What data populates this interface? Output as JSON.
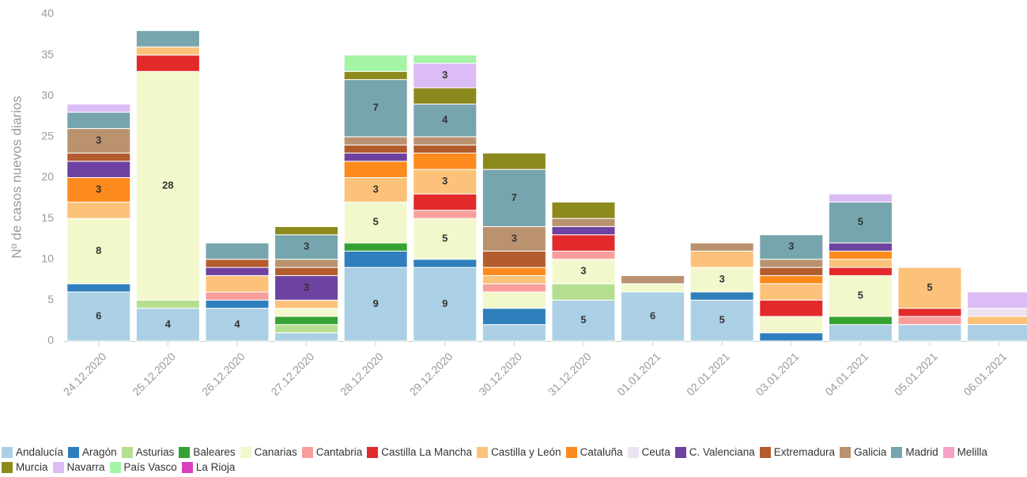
{
  "chart_data": {
    "type": "stacked-bar",
    "y_label": "Nº de casos nuevos diarios",
    "categories": [
      "24.12.2020",
      "25.12.2020",
      "26.12.2020",
      "27.12.2020",
      "28.12.2020",
      "29.12.2020",
      "30.12.2020",
      "31.12.2020",
      "01.01.2021",
      "02.01.2021",
      "03.01.2021",
      "04.01.2021",
      "05.01.2021",
      "06.01.2021"
    ],
    "ylim": [
      0,
      40
    ],
    "yticks": [
      0,
      5,
      10,
      15,
      20,
      25,
      30,
      35,
      40
    ],
    "series": [
      {
        "name": "Andalucía",
        "color": "#abd0e6",
        "values": [
          6,
          4,
          4,
          1,
          9,
          9,
          2,
          5,
          6,
          5,
          0,
          2,
          2,
          2
        ]
      },
      {
        "name": "Aragón",
        "color": "#2f7fbc",
        "values": [
          1,
          0,
          1,
          0,
          2,
          1,
          2,
          0,
          0,
          1,
          1,
          0,
          0,
          0
        ]
      },
      {
        "name": "Asturias",
        "color": "#b5df90",
        "values": [
          0,
          1,
          0,
          1,
          0,
          0,
          0,
          2,
          0,
          0,
          0,
          0,
          0,
          0
        ]
      },
      {
        "name": "Baleares",
        "color": "#36a233",
        "values": [
          0,
          0,
          0,
          1,
          1,
          0,
          0,
          0,
          0,
          0,
          0,
          1,
          0,
          0
        ]
      },
      {
        "name": "Canarias",
        "color": "#f3f8cc",
        "values": [
          8,
          28,
          0,
          1,
          5,
          5,
          2,
          3,
          1,
          3,
          2,
          5,
          0,
          0
        ]
      },
      {
        "name": "Cantabria",
        "color": "#f89f9c",
        "values": [
          0,
          0,
          1,
          0,
          0,
          1,
          1,
          1,
          0,
          0,
          0,
          0,
          1,
          0
        ]
      },
      {
        "name": "Castilla La Mancha",
        "color": "#e22a2a",
        "values": [
          0,
          2,
          0,
          0,
          0,
          2,
          0,
          2,
          0,
          0,
          2,
          1,
          1,
          0
        ]
      },
      {
        "name": "Castilla y León",
        "color": "#fcc27a",
        "values": [
          2,
          1,
          2,
          1,
          3,
          3,
          1,
          0,
          0,
          2,
          2,
          1,
          5,
          1
        ]
      },
      {
        "name": "Cataluña",
        "color": "#fd8a1c",
        "values": [
          3,
          0,
          0,
          0,
          2,
          2,
          1,
          0,
          0,
          0,
          1,
          1,
          0,
          0
        ]
      },
      {
        "name": "Ceuta",
        "color": "#ede3f0",
        "values": [
          0,
          0,
          0,
          0,
          0,
          0,
          0,
          0,
          0,
          0,
          0,
          0,
          0,
          1
        ]
      },
      {
        "name": "C. Valenciana",
        "color": "#6e42a0",
        "values": [
          2,
          0,
          1,
          3,
          1,
          0,
          0,
          1,
          0,
          0,
          0,
          1,
          0,
          0
        ]
      },
      {
        "name": "Extremadura",
        "color": "#b35c2e",
        "values": [
          1,
          0,
          1,
          1,
          1,
          1,
          2,
          0,
          0,
          0,
          1,
          0,
          0,
          0
        ]
      },
      {
        "name": "Galicia",
        "color": "#bb9270",
        "values": [
          3,
          0,
          0,
          1,
          1,
          1,
          3,
          1,
          1,
          1,
          1,
          0,
          0,
          0
        ]
      },
      {
        "name": "Madrid",
        "color": "#77a5ae",
        "values": [
          2,
          2,
          2,
          3,
          7,
          4,
          7,
          0,
          0,
          0,
          3,
          5,
          0,
          0
        ]
      },
      {
        "name": "Melilla",
        "color": "#f6a0c8",
        "values": [
          0,
          0,
          0,
          0,
          0,
          0,
          0,
          0,
          0,
          0,
          0,
          0,
          0,
          0
        ]
      },
      {
        "name": "Murcia",
        "color": "#8c8a1d",
        "values": [
          0,
          0,
          0,
          1,
          1,
          2,
          2,
          2,
          0,
          0,
          0,
          0,
          0,
          0
        ]
      },
      {
        "name": "Navarra",
        "color": "#dbbcf5",
        "values": [
          1,
          0,
          0,
          0,
          0,
          3,
          0,
          0,
          0,
          0,
          0,
          1,
          0,
          2
        ]
      },
      {
        "name": "País Vasco",
        "color": "#a4f4a6",
        "values": [
          0,
          0,
          0,
          0,
          2,
          1,
          0,
          0,
          0,
          0,
          0,
          0,
          0,
          0
        ]
      },
      {
        "name": "La Rioja",
        "color": "#d83fbf",
        "values": [
          0,
          0,
          0,
          0,
          0,
          0,
          0,
          0,
          0,
          0,
          0,
          0,
          0,
          0
        ]
      }
    ]
  }
}
